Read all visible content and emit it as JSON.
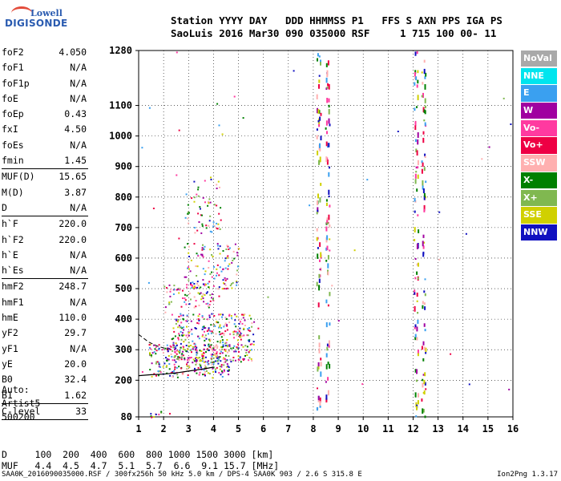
{
  "logo": {
    "top": "Lowell",
    "bottom": "DIGISONDE"
  },
  "header": {
    "line1": "Station YYYY DAY   DDD HHMMSS P1   FFS S AXN PPS IGA PS",
    "line2": "SaoLuis 2016 Mar30 090 035000 RSF     1 715 100 00- 11"
  },
  "params": [
    {
      "label": "foF2",
      "value": "4.050"
    },
    {
      "label": "foF1",
      "value": "N/A"
    },
    {
      "label": "foF1p",
      "value": "N/A"
    },
    {
      "label": "foE",
      "value": "N/A"
    },
    {
      "label": "foEp",
      "value": "0.43"
    },
    {
      "label": "fxI",
      "value": "4.50"
    },
    {
      "label": "foEs",
      "value": "N/A"
    },
    {
      "label": "fmin",
      "value": "1.45",
      "sep": true
    },
    {
      "label": "MUF(D)",
      "value": "15.65"
    },
    {
      "label": "M(D)",
      "value": "3.87"
    },
    {
      "label": "D",
      "value": "N/A",
      "sep": true
    },
    {
      "label": "h`F",
      "value": "220.0"
    },
    {
      "label": "h`F2",
      "value": "220.0"
    },
    {
      "label": "h`E",
      "value": "N/A"
    },
    {
      "label": "h`Es",
      "value": "N/A",
      "sep": true
    },
    {
      "label": "hmF2",
      "value": "248.7"
    },
    {
      "label": "hmF1",
      "value": "N/A"
    },
    {
      "label": "hmE",
      "value": "110.0"
    },
    {
      "label": "yF2",
      "value": "29.7"
    },
    {
      "label": "yF1",
      "value": "N/A"
    },
    {
      "label": "yE",
      "value": "20.0"
    },
    {
      "label": "B0",
      "value": "32.4"
    },
    {
      "label": "B1",
      "value": "1.62",
      "sep": true
    },
    {
      "label": "C-level",
      "value": "33",
      "sep": true
    }
  ],
  "auto": [
    "Auto:",
    "Artist5",
    "500200"
  ],
  "legend": [
    {
      "label": "NoVal",
      "color": "#a9a9a9"
    },
    {
      "label": "NNE",
      "color": "#00e5ee"
    },
    {
      "label": "E",
      "color": "#3aa0f0"
    },
    {
      "label": "W",
      "color": "#a000a0"
    },
    {
      "label": "Vo-",
      "color": "#ff3aa0"
    },
    {
      "label": "Vo+",
      "color": "#ee0044"
    },
    {
      "label": "SSW",
      "color": "#ffb0b0"
    },
    {
      "label": "X-",
      "color": "#008000"
    },
    {
      "label": "X+",
      "color": "#80b850"
    },
    {
      "label": "SSE",
      "color": "#d0d000"
    },
    {
      "label": "NNW",
      "color": "#1010c0"
    }
  ],
  "table": {
    "line1": "D     100  200  400  600  800 1000 1500 3000 [km]",
    "line2": "MUF   4.4  4.5  4.7  5.1  5.7  6.6  9.1 15.7 [MHz]"
  },
  "footer": "SAA0K_2016090035000.RSF / 300fx256h 50 kHz 5.0 km / DPS-4 SAA0K 903 / 2.6 S 315.8 E",
  "version": "Ion2Png 1.3.17",
  "chart_data": {
    "type": "scatter",
    "xlim": [
      1,
      16
    ],
    "ylim": [
      80,
      1280
    ],
    "x_ticks": [
      1,
      2,
      3,
      4,
      5,
      6,
      7,
      8,
      9,
      10,
      11,
      12,
      13,
      14,
      15,
      16
    ],
    "y_ticks": [
      80,
      200,
      300,
      400,
      500,
      600,
      700,
      800,
      900,
      1000,
      1100,
      1280
    ],
    "grid": true,
    "trace_F2": {
      "x": [
        1.0,
        1.5,
        2.0,
        2.5,
        3.0,
        3.5,
        3.8,
        4.0
      ],
      "y": [
        215,
        218,
        220,
        224,
        230,
        236,
        240,
        243
      ]
    },
    "trace_upper": {
      "x": [
        1.0,
        1.4,
        1.8,
        2.2
      ],
      "y": [
        350,
        325,
        310,
        302
      ]
    },
    "clusters": [
      {
        "x": [
          1.4,
          4.6
        ],
        "y": [
          210,
          320
        ],
        "density": 0.9
      },
      {
        "x": [
          2.3,
          5.6
        ],
        "y": [
          260,
          420
        ],
        "density": 0.8
      },
      {
        "x": [
          2.0,
          4.2
        ],
        "y": [
          440,
          520
        ],
        "density": 0.5
      },
      {
        "x": [
          2.8,
          5.0
        ],
        "y": [
          500,
          650
        ],
        "density": 0.45
      },
      {
        "x": [
          2.8,
          4.3
        ],
        "y": [
          680,
          870
        ],
        "density": 0.25
      },
      {
        "x": [
          1.3,
          2.3
        ],
        "y": [
          80,
          100
        ],
        "density": 0.6
      }
    ],
    "vertical_bands": [
      8.2,
      8.55,
      12.1,
      12.4
    ],
    "colors": [
      "#ee0044",
      "#ff3aa0",
      "#008000",
      "#80b850",
      "#d0d000",
      "#ffb0b0",
      "#1010c0",
      "#a000a0",
      "#3aa0f0"
    ]
  }
}
